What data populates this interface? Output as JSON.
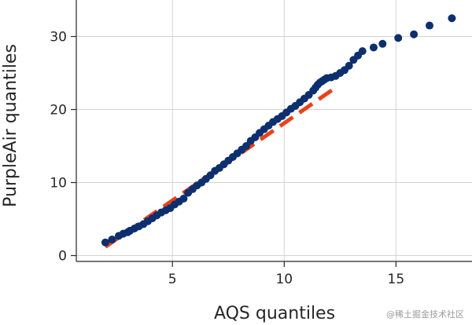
{
  "chart_data": {
    "type": "scatter",
    "xlabel": "AQS quantiles",
    "ylabel": "PurpleAir quantiles",
    "xlim": [
      0.7,
      18.4
    ],
    "ylim": [
      -0.8,
      35
    ],
    "xticks": [
      5,
      10,
      15
    ],
    "yticks": [
      0,
      10,
      20,
      30
    ],
    "grid": true,
    "colors": {
      "points": "#0d2f6e",
      "reference_line": "#e8421a",
      "grid": "#d3d3d3",
      "axis": "#262626"
    },
    "series": [
      {
        "kind": "points",
        "x": [
          2.0,
          2.3,
          2.6,
          2.8,
          3.0,
          3.1,
          3.3,
          3.5,
          3.7,
          3.9,
          4.1,
          4.3,
          4.5,
          4.7,
          4.9,
          5.1,
          5.3,
          5.5,
          5.7,
          5.9,
          6.1,
          6.3,
          6.5,
          6.7,
          6.9,
          7.1,
          7.3,
          7.5,
          7.7,
          7.9,
          8.1,
          8.3,
          8.5,
          8.7,
          8.9,
          9.1,
          9.3,
          9.5,
          9.7,
          9.9,
          10.1,
          10.3,
          10.5,
          10.7,
          10.9,
          11.1,
          11.3,
          11.4,
          11.5,
          11.6,
          11.7,
          11.8,
          11.9,
          12.1,
          12.3,
          12.5,
          12.7,
          12.9,
          13.1,
          13.3,
          13.5,
          14.0,
          14.4,
          15.1,
          15.8,
          16.5,
          17.5
        ],
        "y": [
          1.8,
          2.2,
          2.7,
          3.0,
          3.2,
          3.4,
          3.7,
          4.0,
          4.3,
          4.7,
          5.1,
          5.5,
          5.9,
          6.2,
          6.5,
          7.0,
          7.4,
          7.8,
          8.6,
          9.1,
          9.6,
          10.0,
          10.5,
          11.0,
          11.6,
          12.0,
          12.5,
          13.0,
          13.5,
          14.0,
          14.5,
          15.0,
          15.7,
          16.2,
          16.8,
          17.3,
          17.8,
          18.3,
          18.7,
          19.1,
          19.6,
          20.1,
          20.5,
          21.0,
          21.5,
          22.0,
          22.6,
          23.0,
          23.4,
          23.7,
          23.9,
          24.1,
          24.3,
          24.4,
          24.6,
          25.0,
          25.4,
          26.0,
          26.8,
          27.4,
          28.0,
          28.5,
          29.0,
          29.8,
          30.3,
          31.5,
          32.5
        ]
      },
      {
        "kind": "reference_line",
        "x": [
          2.0,
          12.3
        ],
        "y": [
          1.2,
          23.0
        ]
      }
    ]
  },
  "watermark": "@稀土掘金技术社区"
}
